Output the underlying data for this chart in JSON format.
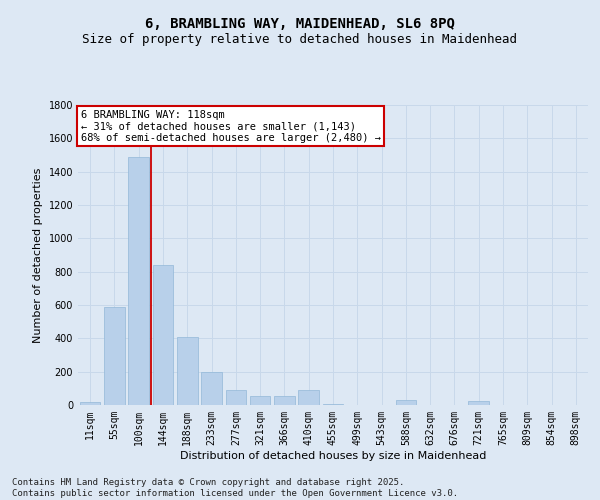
{
  "title_line1": "6, BRAMBLING WAY, MAIDENHEAD, SL6 8PQ",
  "title_line2": "Size of property relative to detached houses in Maidenhead",
  "xlabel": "Distribution of detached houses by size in Maidenhead",
  "ylabel": "Number of detached properties",
  "categories": [
    "11sqm",
    "55sqm",
    "100sqm",
    "144sqm",
    "188sqm",
    "233sqm",
    "277sqm",
    "321sqm",
    "366sqm",
    "410sqm",
    "455sqm",
    "499sqm",
    "543sqm",
    "588sqm",
    "632sqm",
    "676sqm",
    "721sqm",
    "765sqm",
    "809sqm",
    "854sqm",
    "898sqm"
  ],
  "values": [
    20,
    590,
    1490,
    840,
    410,
    200,
    90,
    55,
    55,
    90,
    5,
    0,
    0,
    30,
    0,
    0,
    25,
    0,
    0,
    0,
    0
  ],
  "bar_color": "#b8d0ea",
  "bar_edge_color": "#92b8d8",
  "grid_color": "#c8d8ea",
  "background_color": "#dde8f4",
  "vline_color": "#cc0000",
  "annotation_text": "6 BRAMBLING WAY: 118sqm\n← 31% of detached houses are smaller (1,143)\n68% of semi-detached houses are larger (2,480) →",
  "annotation_box_facecolor": "#ffffff",
  "annotation_box_edgecolor": "#cc0000",
  "ylim": [
    0,
    1800
  ],
  "yticks": [
    0,
    200,
    400,
    600,
    800,
    1000,
    1200,
    1400,
    1600,
    1800
  ],
  "title_fontsize": 10,
  "subtitle_fontsize": 9,
  "axis_label_fontsize": 8,
  "tick_fontsize": 7,
  "annotation_fontsize": 7.5,
  "footer_fontsize": 6.5,
  "footer_line1": "Contains HM Land Registry data © Crown copyright and database right 2025.",
  "footer_line2": "Contains public sector information licensed under the Open Government Licence v3.0."
}
